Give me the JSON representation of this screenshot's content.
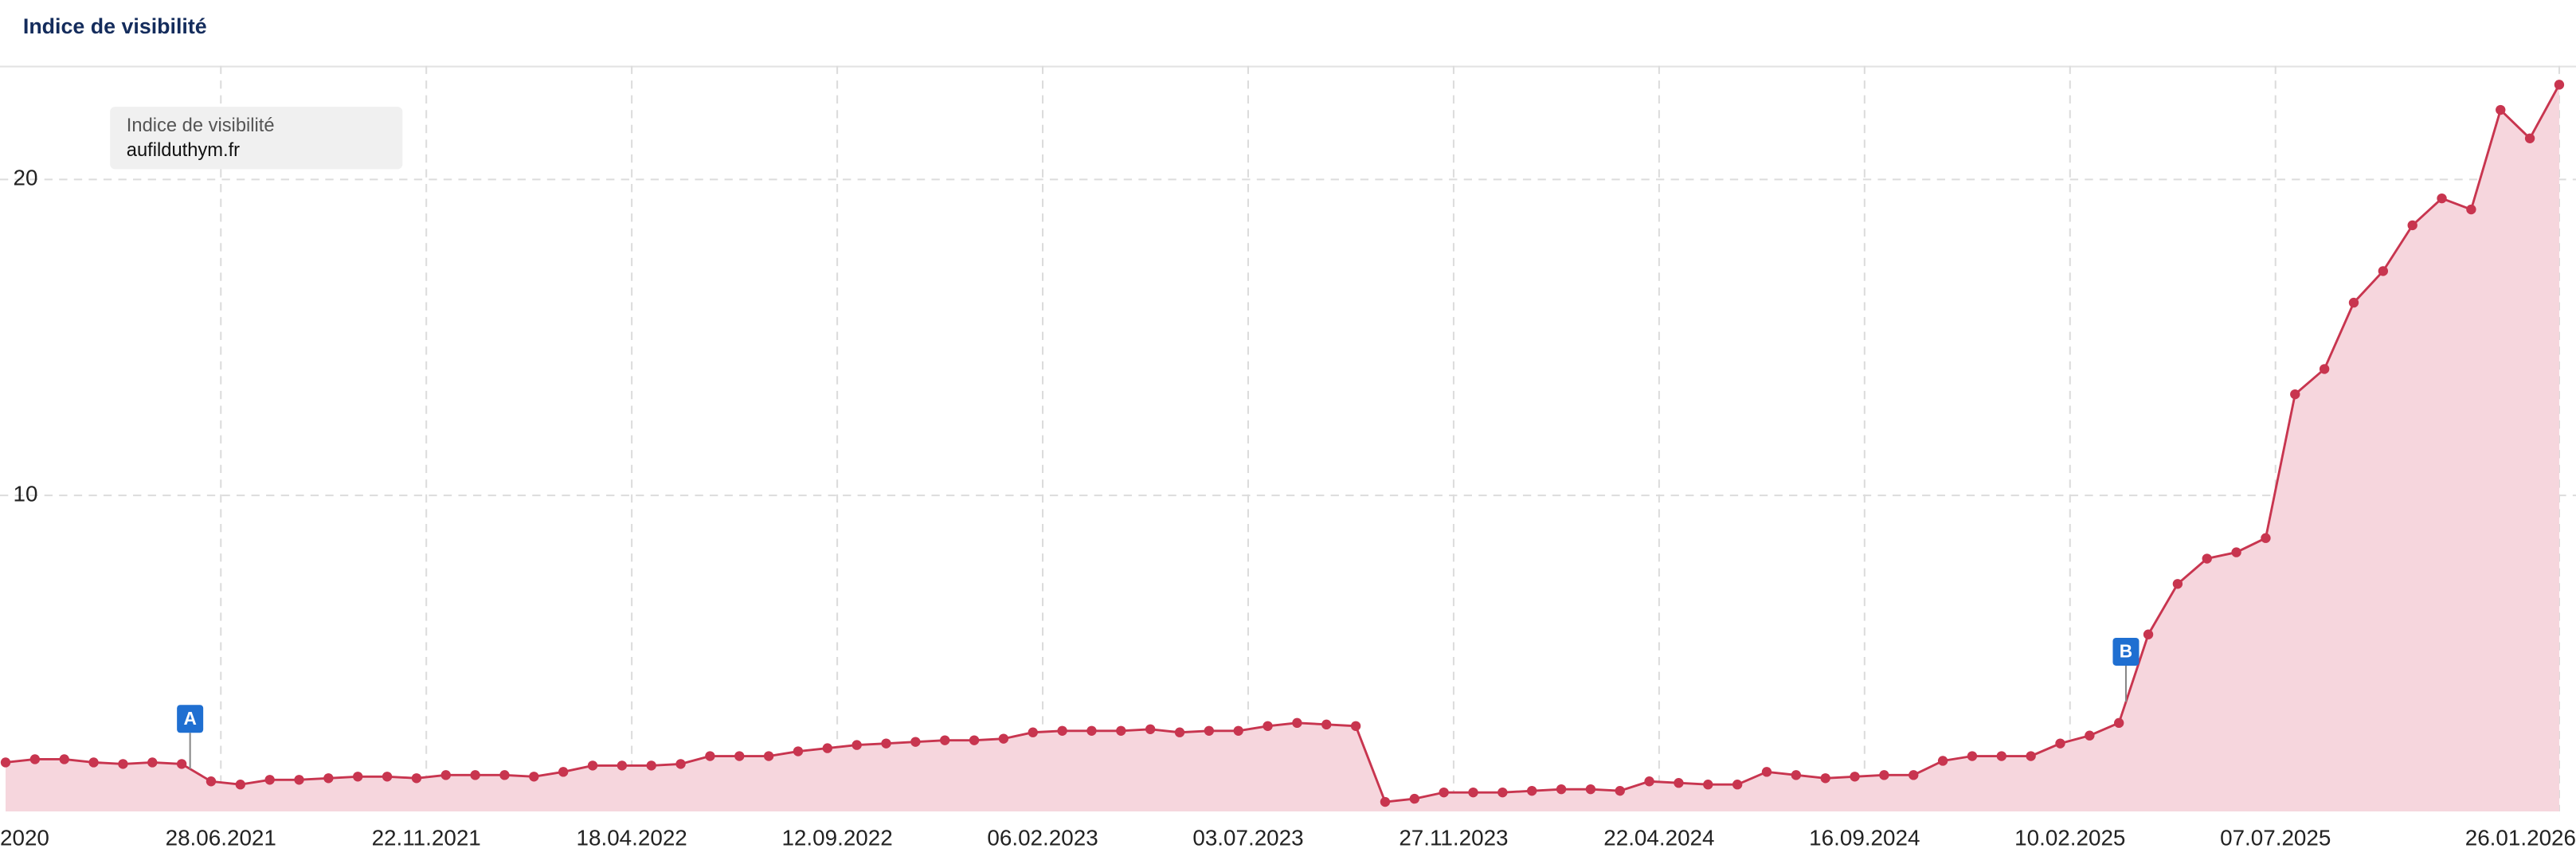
{
  "chart_data": {
    "type": "line",
    "title": "Indice de visibilité",
    "legend_title": "Indice de visibilité",
    "x": [
      "2021-01-25",
      "2021-02-15",
      "2021-03-08",
      "2021-03-29",
      "2021-04-19",
      "2021-05-10",
      "2021-05-31",
      "2021-06-21",
      "2021-07-12",
      "2021-08-02",
      "2021-08-23",
      "2021-09-13",
      "2021-10-04",
      "2021-10-25",
      "2021-11-15",
      "2021-12-06",
      "2021-12-27",
      "2022-01-17",
      "2022-02-07",
      "2022-02-28",
      "2022-03-21",
      "2022-04-11",
      "2022-05-02",
      "2022-05-23",
      "2022-06-13",
      "2022-07-04",
      "2022-07-25",
      "2022-08-15",
      "2022-09-05",
      "2022-09-26",
      "2022-10-17",
      "2022-11-07",
      "2022-11-28",
      "2022-12-19",
      "2023-01-09",
      "2023-01-30",
      "2023-02-20",
      "2023-03-13",
      "2023-04-03",
      "2023-04-24",
      "2023-05-15",
      "2023-06-05",
      "2023-06-26",
      "2023-07-17",
      "2023-08-07",
      "2023-08-28",
      "2023-09-18",
      "2023-10-09",
      "2023-10-30",
      "2023-11-20",
      "2023-12-11",
      "2024-01-01",
      "2024-01-22",
      "2024-02-12",
      "2024-03-04",
      "2024-03-25",
      "2024-04-15",
      "2024-05-06",
      "2024-05-27",
      "2024-06-17",
      "2024-07-08",
      "2024-07-29",
      "2024-08-19",
      "2024-09-09",
      "2024-09-30",
      "2024-10-21",
      "2024-11-11",
      "2024-12-02",
      "2024-12-23",
      "2025-01-13",
      "2025-02-03",
      "2025-02-24",
      "2025-03-17",
      "2025-04-07",
      "2025-04-28",
      "2025-05-19",
      "2025-06-09",
      "2025-06-30",
      "2025-07-21",
      "2025-08-11",
      "2025-09-01",
      "2025-09-22",
      "2025-10-13",
      "2025-11-03",
      "2025-11-24",
      "2025-12-15",
      "2026-01-05",
      "2026-01-26"
    ],
    "series": [
      {
        "name": "aufilduthym.fr",
        "color": "#c8354f",
        "fill": "#f6d6dd",
        "values": [
          1.55,
          1.65,
          1.65,
          1.55,
          1.5,
          1.55,
          1.5,
          0.95,
          0.85,
          1.0,
          1.0,
          1.05,
          1.1,
          1.1,
          1.05,
          1.15,
          1.15,
          1.15,
          1.1,
          1.25,
          1.45,
          1.45,
          1.45,
          1.5,
          1.75,
          1.75,
          1.75,
          1.9,
          2.0,
          2.1,
          2.15,
          2.2,
          2.25,
          2.25,
          2.3,
          2.5,
          2.55,
          2.55,
          2.55,
          2.6,
          2.5,
          2.55,
          2.55,
          2.7,
          2.8,
          2.75,
          2.7,
          0.3,
          0.4,
          0.6,
          0.6,
          0.6,
          0.65,
          0.7,
          0.7,
          0.65,
          0.95,
          0.9,
          0.85,
          0.85,
          1.25,
          1.15,
          1.05,
          1.1,
          1.15,
          1.15,
          1.6,
          1.75,
          1.75,
          1.75,
          2.15,
          2.4,
          2.8,
          5.6,
          7.2,
          8.0,
          8.2,
          8.65,
          13.2,
          14.0,
          16.1,
          17.1,
          18.55,
          19.4,
          19.05,
          22.2,
          21.3,
          23.0
        ]
      }
    ],
    "xlim": [
      "2021-01-21",
      "2026-02-07"
    ],
    "xticks": [
      {
        "value": "2020-12-28",
        "label": "2020"
      },
      {
        "value": "2021-06-28",
        "label": "28.06.2021"
      },
      {
        "value": "2021-11-22",
        "label": "22.11.2021"
      },
      {
        "value": "2022-04-18",
        "label": "18.04.2022"
      },
      {
        "value": "2022-09-12",
        "label": "12.09.2022"
      },
      {
        "value": "2023-02-06",
        "label": "06.02.2023"
      },
      {
        "value": "2023-07-03",
        "label": "03.07.2023"
      },
      {
        "value": "2023-11-27",
        "label": "27.11.2023"
      },
      {
        "value": "2024-04-22",
        "label": "22.04.2024"
      },
      {
        "value": "2024-09-16",
        "label": "16.09.2024"
      },
      {
        "value": "2025-02-10",
        "label": "10.02.2025"
      },
      {
        "value": "2025-07-07",
        "label": "07.07.2025"
      },
      {
        "value": "2026-01-26",
        "label": "26.01.2026"
      }
    ],
    "ylim": [
      0,
      23.6
    ],
    "yticks": [
      10,
      20
    ],
    "grid": true,
    "legend": "top-left",
    "annotations": [
      {
        "label": "A",
        "x": "2021-06-06"
      },
      {
        "label": "B",
        "x": "2025-03-22"
      }
    ]
  }
}
